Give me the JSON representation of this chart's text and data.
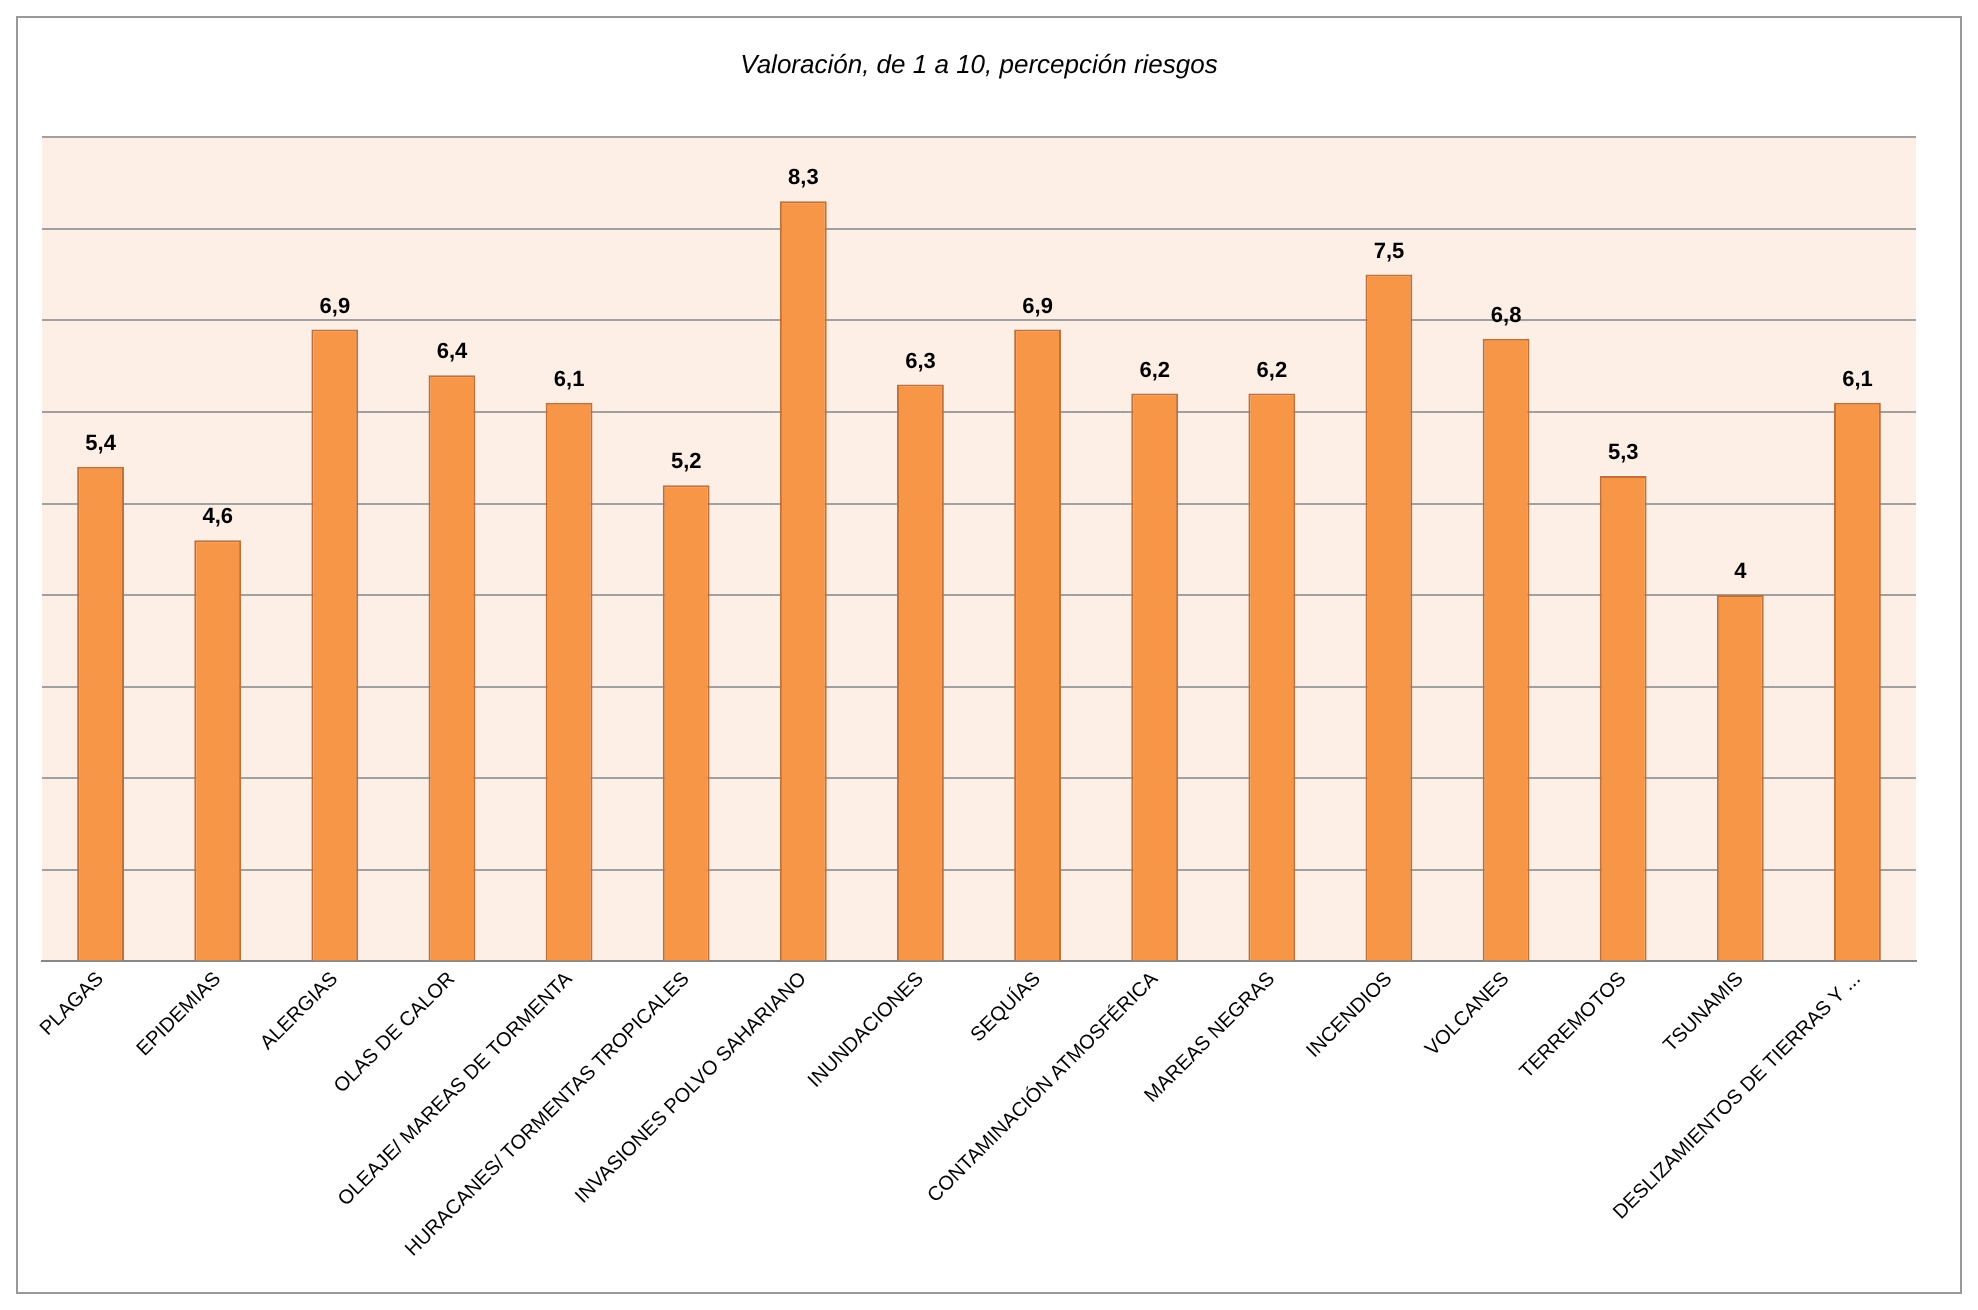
{
  "chart_data": {
    "type": "bar",
    "title": "Valoración, de 1 a 10, percepción riesgos",
    "categories": [
      "PLAGAS",
      "EPIDEMIAS",
      "ALERGIAS",
      "OLAS DE CALOR",
      "OLEAJE/ MAREAS DE TORMENTA",
      "HURACANES/ TORMENTAS TROPICALES",
      "INVASIONES POLVO SAHARIANO",
      "INUNDACIONES",
      "SEQUÍAS",
      "CONTAMINACIÓN ATMOSFÉRICA",
      "MAREAS NEGRAS",
      "INCENDIOS",
      "VOLCANES",
      "TERREMOTOS",
      "TSUNAMIS",
      "DESLIZAMIENTOS DE TIERRAS Y ..."
    ],
    "values": [
      5.4,
      4.6,
      6.9,
      6.4,
      6.1,
      5.2,
      8.3,
      6.3,
      6.9,
      6.2,
      6.2,
      7.5,
      6.8,
      5.3,
      4,
      6.1
    ],
    "value_labels": [
      "5,4",
      "4,6",
      "6,9",
      "6,4",
      "6,1",
      "5,2",
      "8,3",
      "6,3",
      "6,9",
      "6,2",
      "6,2",
      "7,5",
      "6,8",
      "5,3",
      "4",
      "6,1"
    ],
    "color": "#f79646",
    "ylim": [
      0,
      9
    ],
    "yticks": [
      {
        "value": 0,
        "label": null
      },
      {
        "value": 1,
        "label": null
      },
      {
        "value": 2,
        "label": null
      },
      {
        "value": 3,
        "label": null
      },
      {
        "value": 4,
        "label": null
      },
      {
        "value": 5,
        "label": null
      },
      {
        "value": 6,
        "label": null
      },
      {
        "value": 7,
        "label": null
      },
      {
        "value": 8,
        "label": null
      },
      {
        "value": 9,
        "label": null
      }
    ],
    "grid": "y",
    "tick_labels": "x",
    "legend": false
  }
}
